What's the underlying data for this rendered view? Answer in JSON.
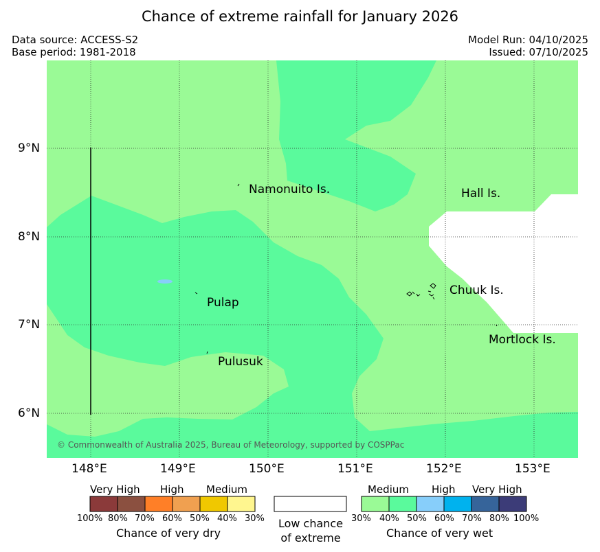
{
  "title": "Chance of extreme rainfall for January 2026",
  "header": {
    "data_source": "Data source: ACCESS-S2",
    "base_period": "Base period: 1981-2018",
    "model_run": "Model Run: 04/10/2025",
    "issued": "Issued: 07/10/2025"
  },
  "map": {
    "lat_labels": [
      "9°N",
      "8°N",
      "7°N",
      "6°N"
    ],
    "lon_labels": [
      "148°E",
      "149°E",
      "150°E",
      "151°E",
      "152°E",
      "153°E"
    ],
    "places": {
      "namonuito": "Namonuito Is.",
      "hall": "Hall Is.",
      "pulap": "Pulap",
      "chuuk": "Chuuk Is.",
      "mortlock": "Mortlock Is.",
      "pulusuk": "Pulusuk"
    },
    "copyright": "© Commonwealth of Australia 2025, Bureau of Meteorology, supported by COSPPac",
    "colors": {
      "wet_medium": "#9afa96",
      "wet_medium_plus": "#5afa9c",
      "wet_high": "#87cefa",
      "land": "#ffffff"
    }
  },
  "legend": {
    "dry": {
      "headings": [
        "Very High",
        "High",
        "Medium"
      ],
      "ticks": [
        "100%",
        "80%",
        "70%",
        "60%",
        "50%",
        "40%",
        "30%"
      ],
      "colors": [
        "#8b3a3a",
        "#8b5040",
        "#ff7f27",
        "#f0a050",
        "#f0c800",
        "#fff68f"
      ],
      "caption": "Chance of very dry"
    },
    "neutral": {
      "line1": "Low chance",
      "line2": "of extreme"
    },
    "wet": {
      "headings": [
        "Medium",
        "High",
        "Very High"
      ],
      "ticks": [
        "30%",
        "40%",
        "50%",
        "60%",
        "70%",
        "80%",
        "100%"
      ],
      "colors": [
        "#9afa96",
        "#5afa9c",
        "#87cefa",
        "#00b2ee",
        "#36649a",
        "#3c3c78"
      ],
      "caption": "Chance of very wet"
    }
  }
}
